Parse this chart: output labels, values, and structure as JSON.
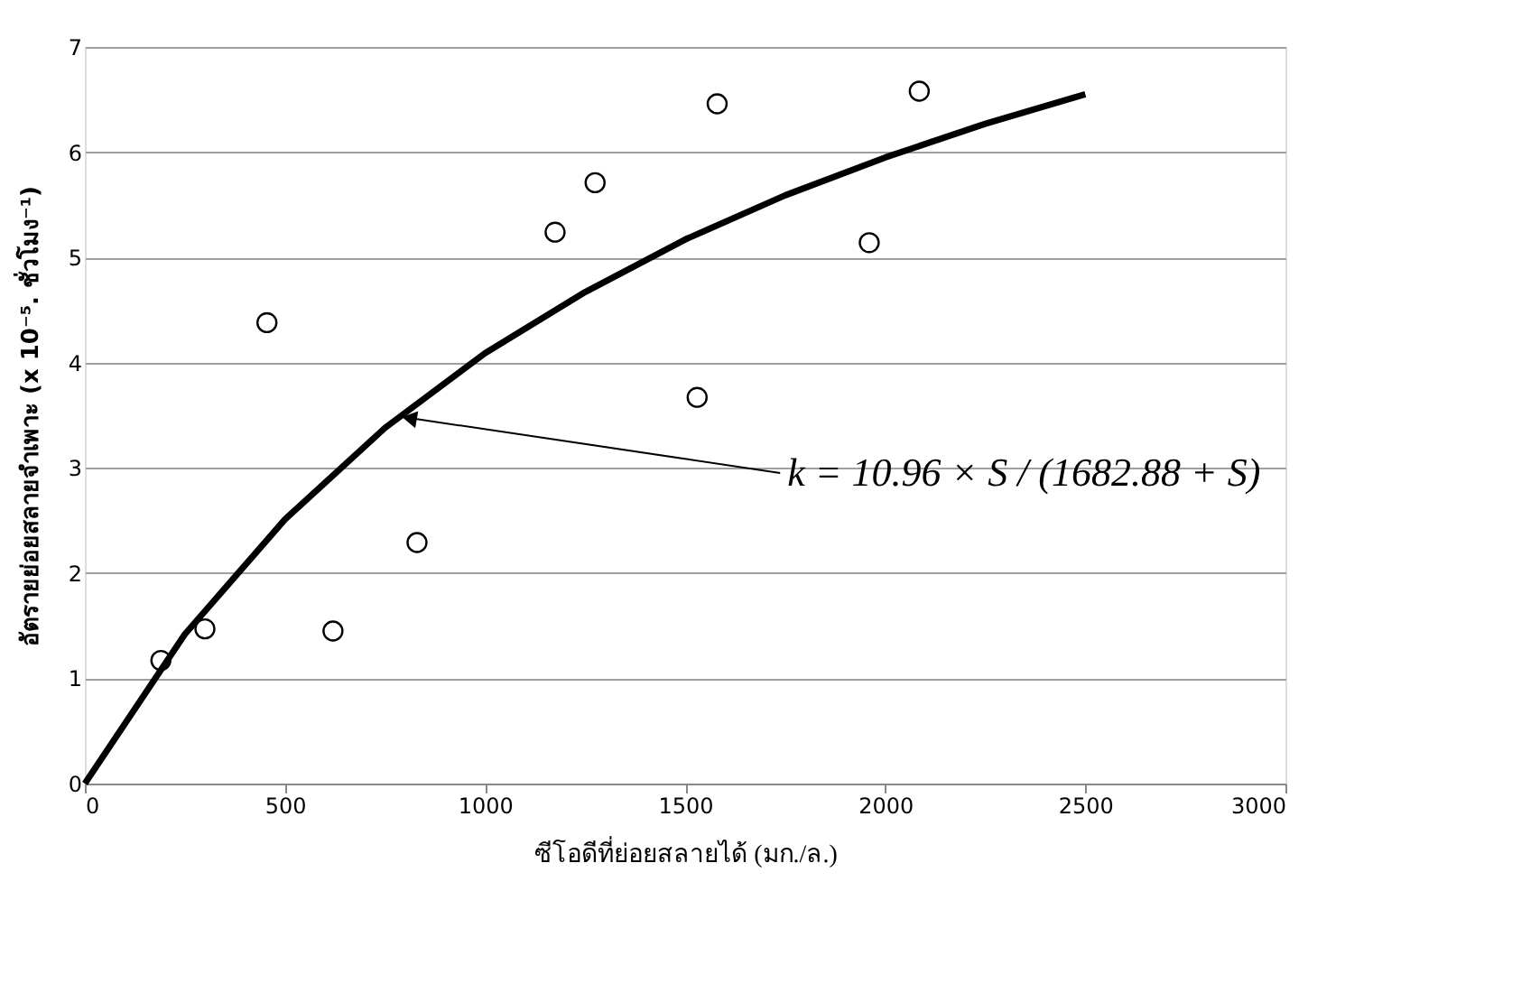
{
  "chart_data": {
    "type": "scatter",
    "xlabel": "ซีโอดีที่ย่อยสลายได้ (มก./ล.)",
    "ylabel": "อัตรายย่อยสลายจำเพาะ (x 10⁻⁵. ชั่วโมง⁻¹)",
    "series": [
      {
        "color": "#000000",
        "marker": "circle",
        "x": [
          190,
          300,
          455,
          620,
          830,
          1175,
          1275,
          1530,
          1580,
          1960,
          2085
        ],
        "values": [
          1.17,
          1.47,
          4.38,
          1.45,
          2.29,
          5.24,
          5.71,
          3.67,
          6.46,
          5.14,
          6.58
        ]
      },
      {
        "type": "line",
        "color": "#000000",
        "marker": "none",
        "x": [
          0,
          250,
          500,
          750,
          1000,
          1250,
          1500,
          1750,
          2000,
          2250,
          2500
        ],
        "values": [
          0,
          1.42,
          2.51,
          3.38,
          4.09,
          4.67,
          5.17,
          5.59,
          5.95,
          6.27,
          6.55
        ]
      }
    ],
    "annotations": [
      {
        "text": "k = 10.96 × S / (1682.88 + S)",
        "x": 790,
        "y": 3.5
      }
    ],
    "xlim": [
      0,
      3000
    ],
    "xticks": [
      0,
      500,
      1000,
      1500,
      2000,
      2500,
      3000
    ],
    "ylim": [
      0,
      7
    ],
    "yticks": [
      0,
      1,
      2,
      3,
      4,
      5,
      6,
      7
    ],
    "grid": "y"
  }
}
